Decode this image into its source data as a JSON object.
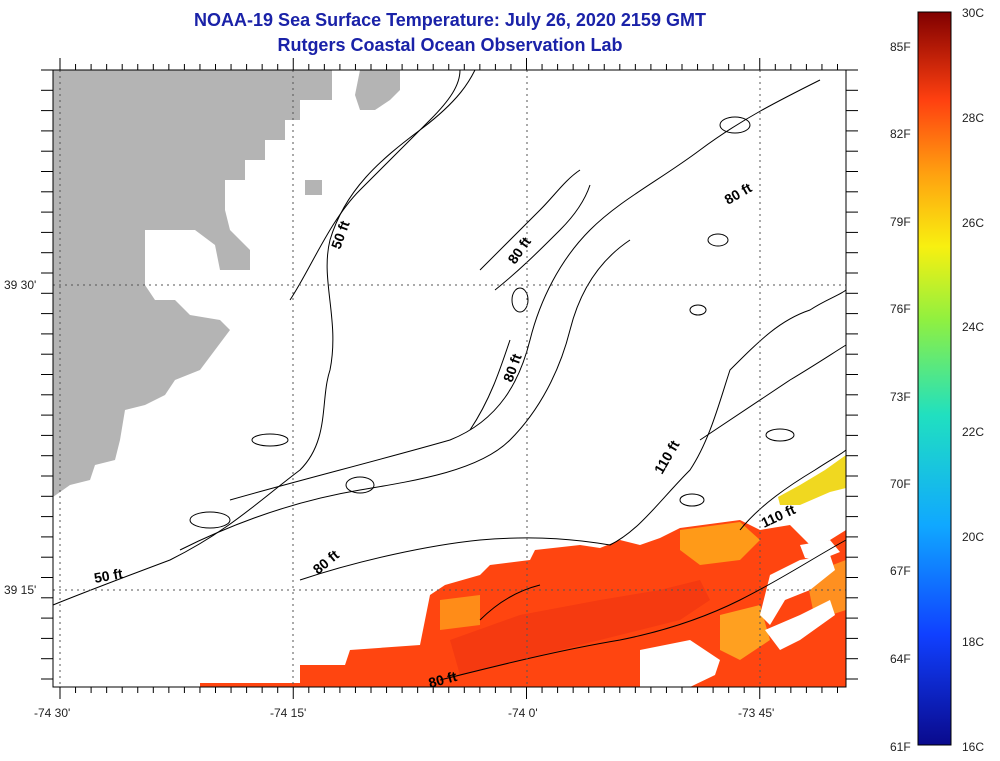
{
  "header": {
    "title": "NOAA-19 Sea Surface Temperature:  July 26, 2020 2159 GMT",
    "subtitle": "Rutgers Coastal Ocean Observation Lab"
  },
  "map": {
    "x_ticks": [
      "-74 30'",
      "-74 15'",
      "-74 0'",
      "-73 45'"
    ],
    "y_ticks": [
      "39 30'",
      "39 15'"
    ],
    "contour_labels": [
      "50 ft",
      "50 ft",
      "80 ft",
      "80 ft",
      "80 ft",
      "80 ft",
      "110 ft",
      "110 ft",
      "80 ft"
    ],
    "colors": {
      "land": "#b4b4b4",
      "grid": "#555555",
      "contour": "#000000"
    }
  },
  "colorbar": {
    "celsius": [
      "30C",
      "28C",
      "26C",
      "24C",
      "22C",
      "20C",
      "18C",
      "16C"
    ],
    "fahrenheit": [
      "85F",
      "82F",
      "79F",
      "76F",
      "73F",
      "70F",
      "67F",
      "64F",
      "61F"
    ],
    "range_c": [
      16,
      30
    ]
  }
}
